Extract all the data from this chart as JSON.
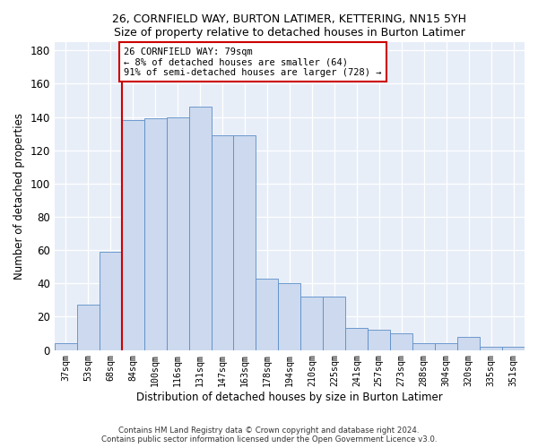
{
  "title1": "26, CORNFIELD WAY, BURTON LATIMER, KETTERING, NN15 5YH",
  "title2": "Size of property relative to detached houses in Burton Latimer",
  "xlabel": "Distribution of detached houses by size in Burton Latimer",
  "ylabel": "Number of detached properties",
  "categories": [
    "37sqm",
    "53sqm",
    "68sqm",
    "84sqm",
    "100sqm",
    "116sqm",
    "131sqm",
    "147sqm",
    "163sqm",
    "178sqm",
    "194sqm",
    "210sqm",
    "225sqm",
    "241sqm",
    "257sqm",
    "273sqm",
    "288sqm",
    "304sqm",
    "320sqm",
    "335sqm",
    "351sqm"
  ],
  "values": [
    4,
    27,
    59,
    138,
    139,
    140,
    146,
    129,
    129,
    43,
    40,
    32,
    32,
    13,
    12,
    10,
    4,
    4,
    8,
    2,
    2
  ],
  "bar_color": "#ccd9ee",
  "bar_edge_color": "#5b8dc8",
  "vline_color": "#cc0000",
  "annotation_text": "26 CORNFIELD WAY: 79sqm\n← 8% of detached houses are smaller (64)\n91% of semi-detached houses are larger (728) →",
  "annotation_box_color": "#ffffff",
  "annotation_box_edge": "#cc0000",
  "ylim": [
    0,
    185
  ],
  "yticks": [
    0,
    20,
    40,
    60,
    80,
    100,
    120,
    140,
    160,
    180
  ],
  "footer1": "Contains HM Land Registry data © Crown copyright and database right 2024.",
  "footer2": "Contains public sector information licensed under the Open Government Licence v3.0.",
  "bg_color": "#e8eef8"
}
